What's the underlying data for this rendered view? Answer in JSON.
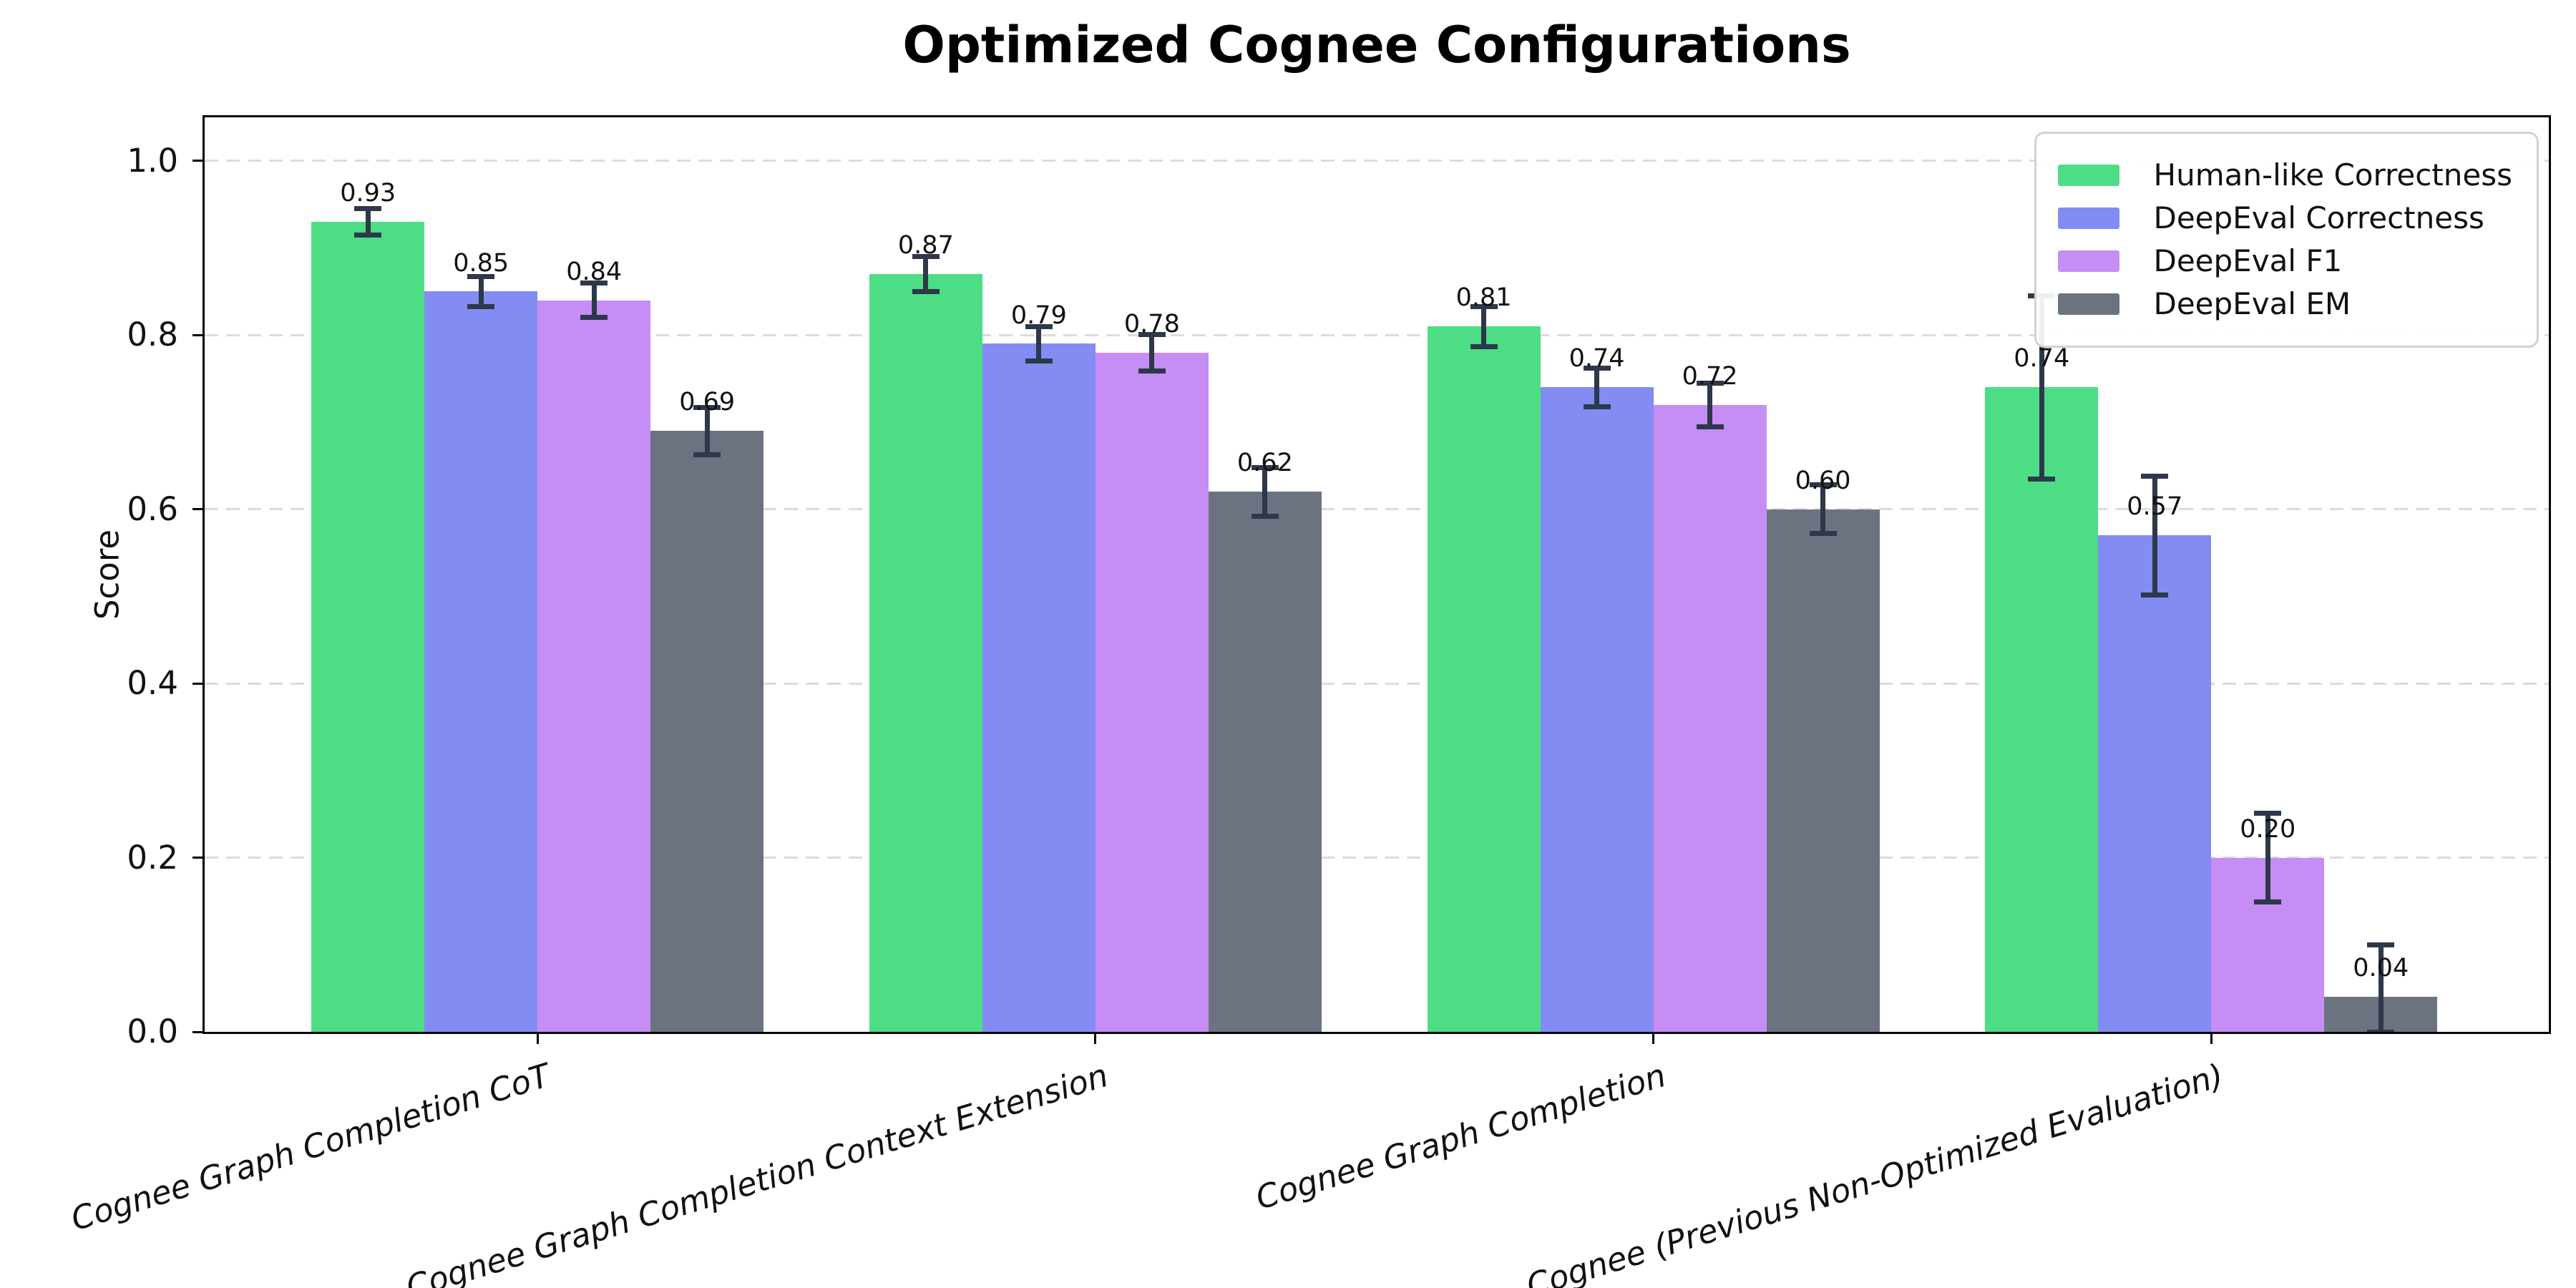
{
  "title": "Optimized Cognee Configurations",
  "chart_data": {
    "type": "bar",
    "title": "Optimized Cognee Configurations",
    "ylabel": "Score",
    "xlabel": "",
    "ylim": [
      0,
      1.05
    ],
    "yticks": [
      0.0,
      0.2,
      0.4,
      0.6,
      0.8,
      1.0
    ],
    "grid": "horizontal-dashed",
    "legend_position": "upper right",
    "categories": [
      "Cognee Graph Completion CoT",
      "Cognee Graph Completion Context Extension",
      "Cognee Graph Completion",
      "Cognee (Previous Non-Optimized Evaluation)"
    ],
    "series": [
      {
        "name": "Human-like Correctness",
        "color": "#4dde85",
        "values": [
          0.93,
          0.87,
          0.81,
          0.74
        ],
        "errors": [
          0.015,
          0.02,
          0.023,
          0.105
        ]
      },
      {
        "name": "DeepEval Correctness",
        "color": "#828cf3",
        "values": [
          0.85,
          0.79,
          0.74,
          0.57
        ],
        "errors": [
          0.017,
          0.02,
          0.022,
          0.068
        ]
      },
      {
        "name": "DeepEval F1",
        "color": "#c68df5",
        "values": [
          0.84,
          0.78,
          0.72,
          0.2
        ],
        "errors": [
          0.02,
          0.021,
          0.025,
          0.051
        ]
      },
      {
        "name": "DeepEval EM",
        "color": "#6c7380",
        "values": [
          0.69,
          0.62,
          0.6,
          0.04
        ],
        "errors": [
          0.027,
          0.028,
          0.028,
          0.06
        ]
      }
    ],
    "value_labels": [
      [
        "0.93",
        "0.87",
        "0.81",
        "0.74"
      ],
      [
        "0.85",
        "0.79",
        "0.74",
        "0.57"
      ],
      [
        "0.84",
        "0.78",
        "0.72",
        "0.20"
      ],
      [
        "0.69",
        "0.62",
        "0.60",
        "0.04"
      ]
    ]
  },
  "colors": {
    "error_bar": "#2d384a",
    "gridline": "#dcdcdc",
    "axis": "#000000",
    "legend_border": "#d2d2d2",
    "background": "#ffffff",
    "text": "#111111"
  }
}
